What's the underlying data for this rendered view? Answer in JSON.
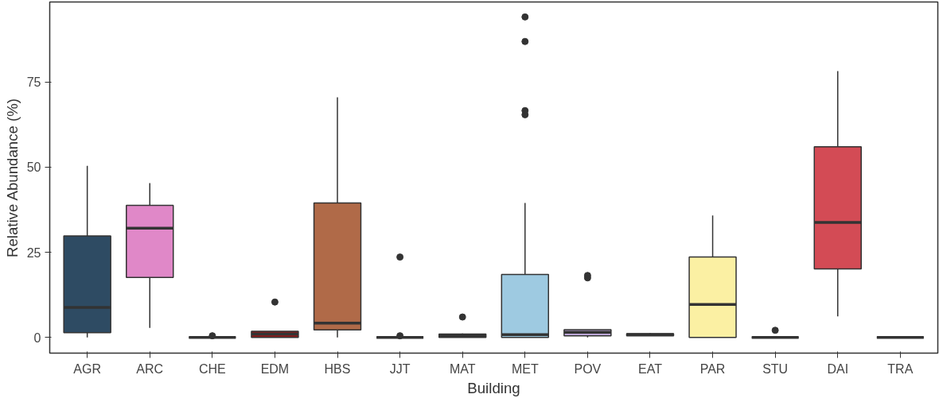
{
  "chart_data": {
    "type": "box",
    "xlabel": "Building",
    "ylabel": "Relative Abundance (%)",
    "categories": [
      "AGR",
      "ARC",
      "CHE",
      "EDM",
      "HBS",
      "JJT",
      "MAT",
      "MET",
      "POV",
      "EAT",
      "PAR",
      "STU",
      "DAI",
      "TRA"
    ],
    "colors": [
      "#2e4b63",
      "#e088c8",
      "#333333",
      "#8b1a1a",
      "#b06a48",
      "#333333",
      "#333333",
      "#9ecae1",
      "#bca6d6",
      "#333333",
      "#fbf0a3",
      "#333333",
      "#d34b55",
      "#333333"
    ],
    "boxes": [
      {
        "low": 0,
        "q1": 1.4,
        "median": 8.8,
        "q3": 29.8,
        "high": 50.4
      },
      {
        "low": 2.8,
        "q1": 17.6,
        "median": 32.1,
        "q3": 38.8,
        "high": 45.3
      },
      {
        "low": 0,
        "q1": 0,
        "median": 0,
        "q3": 0,
        "high": 0,
        "outliers": [
          0.5
        ]
      },
      {
        "low": 0,
        "q1": 0,
        "median": 1,
        "q3": 1.8,
        "high": 1.8,
        "outliers": [
          10.4
        ]
      },
      {
        "low": 0,
        "q1": 2.2,
        "median": 4.2,
        "q3": 39.5,
        "high": 70.5
      },
      {
        "low": 0,
        "q1": 0,
        "median": 0,
        "q3": 0,
        "high": 0,
        "outliers": [
          0.5,
          23.6
        ]
      },
      {
        "low": 0,
        "q1": 0,
        "median": 0.5,
        "q3": 1,
        "high": 1.2,
        "outliers": [
          6
        ]
      },
      {
        "low": 0,
        "q1": 0,
        "median": 0.8,
        "q3": 18.5,
        "high": 39.5,
        "outliers": [
          65.4,
          66.6,
          86.9,
          94.1
        ]
      },
      {
        "low": 0,
        "q1": 0.5,
        "median": 1.5,
        "q3": 2.3,
        "high": 2.3,
        "outliers": [
          17.5,
          18.2
        ]
      },
      {
        "low": 0.5,
        "q1": 0.5,
        "median": 0.8,
        "q3": 1.1,
        "high": 1.3
      },
      {
        "low": 0,
        "q1": 0,
        "median": 9.7,
        "q3": 23.6,
        "high": 35.8
      },
      {
        "low": 0,
        "q1": 0,
        "median": 0,
        "q3": 0,
        "high": 0,
        "outliers": [
          2.1
        ]
      },
      {
        "low": 6.2,
        "q1": 20.1,
        "median": 33.8,
        "q3": 56,
        "high": 78.2
      },
      {
        "low": 0,
        "q1": 0,
        "median": 0,
        "q3": 0,
        "high": 0
      }
    ],
    "ylim": [
      -4.6,
      98.5
    ],
    "yticks": [
      0,
      25,
      50,
      75
    ],
    "grid": false
  }
}
